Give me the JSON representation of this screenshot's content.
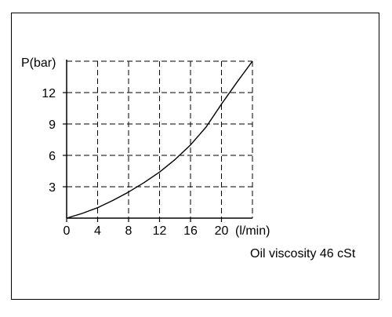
{
  "chart_data": {
    "type": "line",
    "title": "",
    "ylabel": "P(bar)",
    "xlabel": "(l/min)",
    "note": "Oil viscosity 46 cSt",
    "xlim": [
      0,
      24
    ],
    "ylim": [
      0,
      15
    ],
    "x_ticks": [
      0,
      4,
      8,
      12,
      16,
      20
    ],
    "y_ticks": [
      3,
      6,
      9,
      12
    ],
    "grid": true,
    "series": [
      {
        "points": [
          [
            0,
            0
          ],
          [
            2,
            0.45
          ],
          [
            4,
            1.0
          ],
          [
            6,
            1.7
          ],
          [
            8,
            2.5
          ],
          [
            10,
            3.4
          ],
          [
            12,
            4.4
          ],
          [
            14,
            5.6
          ],
          [
            16,
            7.0
          ],
          [
            18,
            8.7
          ],
          [
            20,
            10.9
          ],
          [
            22,
            13.0
          ],
          [
            24,
            15.0
          ]
        ]
      }
    ]
  }
}
